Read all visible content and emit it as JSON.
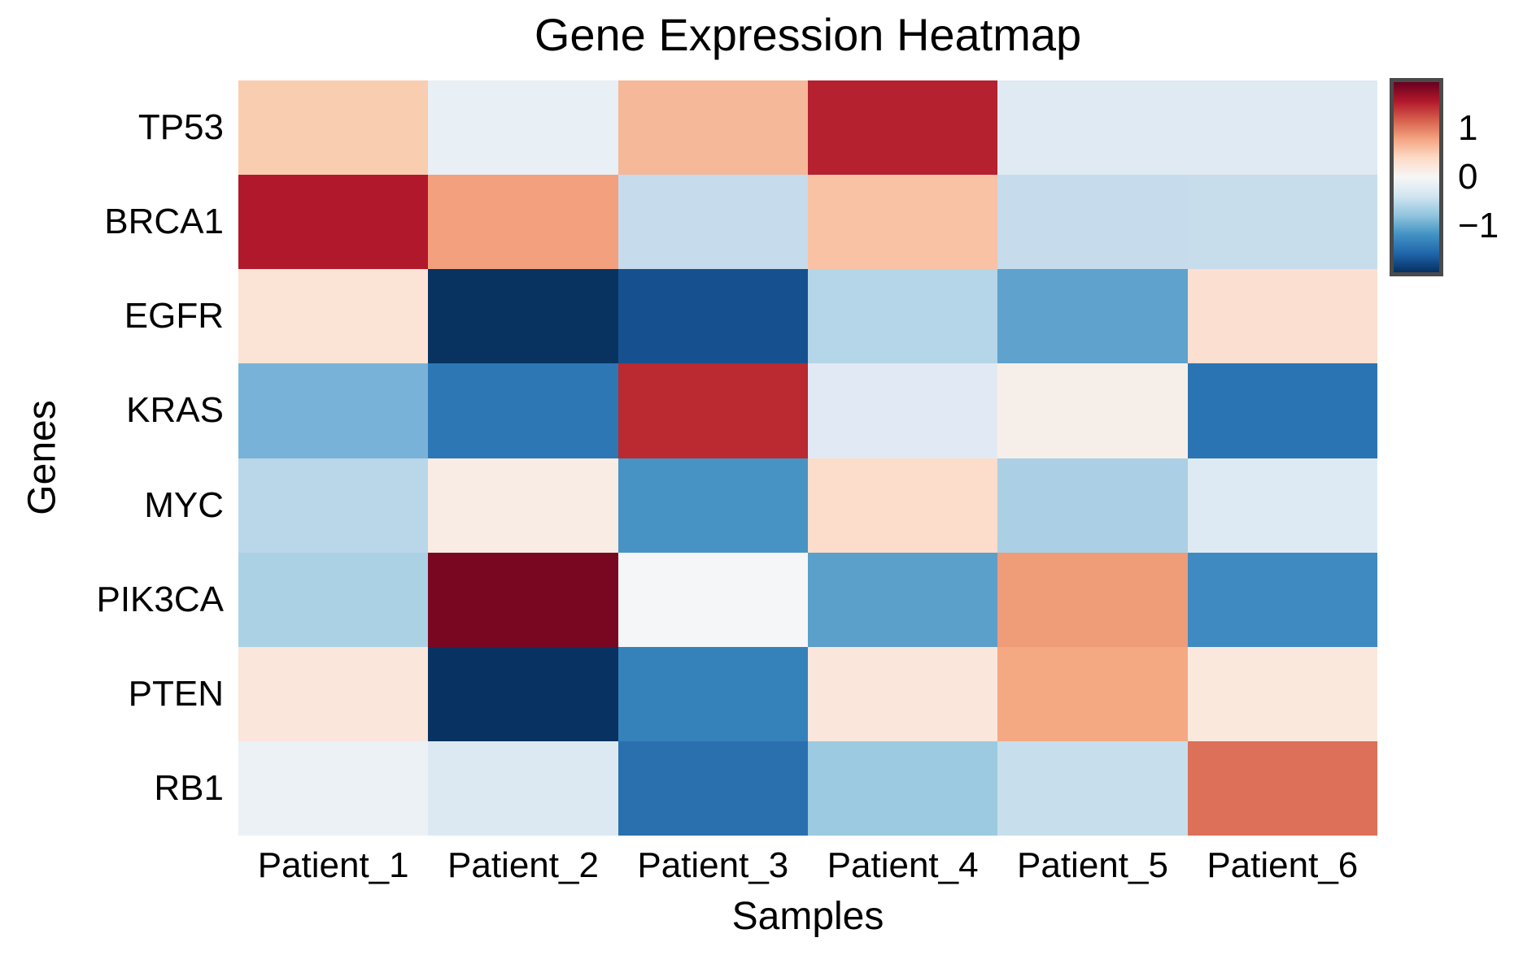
{
  "title": "Gene Expression Heatmap",
  "axes": {
    "x_label": "Samples",
    "y_label": "Genes"
  },
  "chart_data": {
    "type": "heatmap",
    "title": "Gene Expression Heatmap",
    "xlabel": "Samples",
    "ylabel": "Genes",
    "x_categories": [
      "Patient_1",
      "Patient_2",
      "Patient_3",
      "Patient_4",
      "Patient_5",
      "Patient_6"
    ],
    "y_categories": [
      "TP53",
      "BRCA1",
      "EGFR",
      "KRAS",
      "MYC",
      "PIK3CA",
      "PTEN",
      "RB1"
    ],
    "series": [
      {
        "name": "TP53",
        "values": [
          0.55,
          -0.15,
          0.7,
          1.55,
          -0.25,
          -0.25
        ]
      },
      {
        "name": "BRCA1",
        "values": [
          1.6,
          0.8,
          -0.35,
          0.65,
          -0.35,
          -0.35
        ]
      },
      {
        "name": "EGFR",
        "values": [
          0.35,
          -1.85,
          -1.55,
          -0.45,
          -0.9,
          0.4
        ]
      },
      {
        "name": "KRAS",
        "values": [
          -0.8,
          -1.35,
          1.5,
          -0.2,
          0.1,
          -1.35
        ]
      },
      {
        "name": "MYC",
        "values": [
          -0.45,
          0.2,
          -1.1,
          0.45,
          -0.5,
          -0.25
        ]
      },
      {
        "name": "PIK3CA",
        "values": [
          -0.55,
          1.9,
          0.0,
          -0.95,
          0.85,
          -1.2
        ]
      },
      {
        "name": "PTEN",
        "values": [
          0.35,
          -1.9,
          -1.3,
          0.35,
          0.8,
          0.3
        ]
      },
      {
        "name": "RB1",
        "values": [
          -0.1,
          -0.25,
          -1.4,
          -0.6,
          -0.35,
          1.2
        ]
      }
    ],
    "cell_colors": [
      [
        "#f9cdb0",
        "#e8f0f5",
        "#f5b899",
        "#b5212e",
        "#dfeaf3",
        "#dfeaf3"
      ],
      [
        "#b2182b",
        "#f2a07e",
        "#c6dcec",
        "#f9c2a5",
        "#c6dcec",
        "#c7ddeb"
      ],
      [
        "#fbe4d6",
        "#083361",
        "#17508f",
        "#b4d6e8",
        "#5fa2cd",
        "#fbdfd0"
      ],
      [
        "#79b2d8",
        "#2e77b5",
        "#bb2931",
        "#e1eaf4",
        "#f6efe9",
        "#2b74b3"
      ],
      [
        "#b9d7e9",
        "#f8ece5",
        "#4794c4",
        "#fcdccb",
        "#abd0e5",
        "#ddeaf3"
      ],
      [
        "#abd1e5",
        "#7a0722",
        "#f4f6f8",
        "#5b9fcb",
        "#ef9c79",
        "#3f8ac1"
      ],
      [
        "#fae6da",
        "#083261",
        "#3582ba",
        "#fae6da",
        "#f4a983",
        "#fae8dd"
      ],
      [
        "#ecf1f5",
        "#dce9f2",
        "#2a70af",
        "#9ccae1",
        "#c7dfec",
        "#dc7058"
      ]
    ],
    "value_range": [
      -1.95,
      1.95
    ],
    "colormap": "RdBu_r",
    "grid": false,
    "legend_position": "right-colorbar",
    "colorbar": {
      "tick_labels": [
        "1",
        "0",
        "−1"
      ],
      "tick_values": [
        1,
        0,
        -1
      ],
      "border_color": "#4a4a4a",
      "gradient_stops": [
        "#67001f",
        "#b2182b",
        "#d6604d",
        "#f4a582",
        "#fddbc7",
        "#f7f7f7",
        "#d1e5f0",
        "#92c5de",
        "#4393c3",
        "#2166ac",
        "#053061"
      ]
    }
  }
}
